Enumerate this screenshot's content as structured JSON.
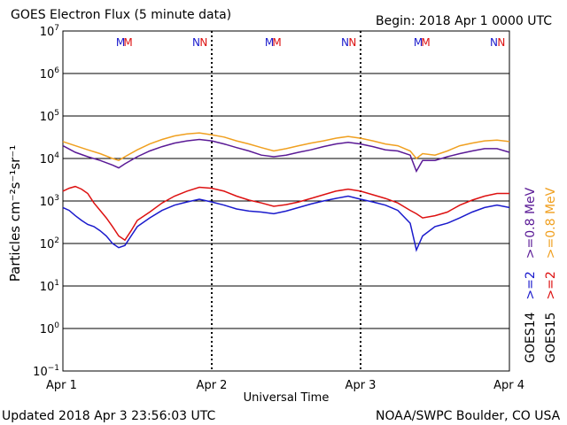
{
  "header": {
    "title": "GOES Electron Flux (5 minute data)",
    "begin": "Begin: 2018 Apr 1 0000 UTC"
  },
  "footer": {
    "updated": "Updated 2018 Apr  3 23:56:03 UTC",
    "credit": "NOAA/SWPC Boulder, CO USA"
  },
  "chart_data": {
    "type": "line",
    "xlabel": "Universal Time",
    "ylabel": "Particles cm⁻²s⁻¹sr⁻¹",
    "x_ticks": [
      "Apr 1",
      "Apr 2",
      "Apr 3",
      "Apr 4"
    ],
    "xlim_hours": [
      0,
      72
    ],
    "y_scale": "log",
    "ylim": [
      0.1,
      10000000
    ],
    "y_ticks": [
      {
        "base": "10",
        "exp": "7"
      },
      {
        "base": "10",
        "exp": "6"
      },
      {
        "base": "10",
        "exp": "5"
      },
      {
        "base": "10",
        "exp": "4"
      },
      {
        "base": "10",
        "exp": "3"
      },
      {
        "base": "10",
        "exp": "2"
      },
      {
        "base": "10",
        "exp": "1"
      },
      {
        "base": "10",
        "exp": "0"
      },
      {
        "base": "10",
        "exp": "−1"
      }
    ],
    "threshold": 1000,
    "markers": [
      {
        "hour": 9.3,
        "label": "M",
        "color": "#1a1acc"
      },
      {
        "hour": 10.5,
        "label": "M",
        "color": "#dd1111"
      },
      {
        "hour": 21.5,
        "label": "N",
        "color": "#1a1acc"
      },
      {
        "hour": 22.7,
        "label": "N",
        "color": "#dd1111"
      },
      {
        "hour": 33.3,
        "label": "M",
        "color": "#1a1acc"
      },
      {
        "hour": 34.5,
        "label": "M",
        "color": "#dd1111"
      },
      {
        "hour": 45.5,
        "label": "N",
        "color": "#1a1acc"
      },
      {
        "hour": 46.7,
        "label": "N",
        "color": "#dd1111"
      },
      {
        "hour": 57.3,
        "label": "M",
        "color": "#1a1acc"
      },
      {
        "hour": 58.5,
        "label": "M",
        "color": "#dd1111"
      },
      {
        "hour": 69.5,
        "label": "N",
        "color": "#1a1acc"
      },
      {
        "hour": 70.7,
        "label": "N",
        "color": "#dd1111"
      }
    ],
    "legend": {
      "placement": "right",
      "groups": [
        {
          "sat": "GOES14",
          "entries": [
            {
              "label": ">=2",
              "color": "#1a1acc"
            },
            {
              "label": ">=0.8 MeV",
              "color": "#5a1a96"
            }
          ]
        },
        {
          "sat": "GOES15",
          "entries": [
            {
              "label": ">=2",
              "color": "#dd1111"
            },
            {
              "label": ">=0.8 MeV",
              "color": "#f0a020"
            }
          ]
        }
      ]
    },
    "series": [
      {
        "name": "GOES15 >=0.8 MeV",
        "color": "#f0a020",
        "points": [
          [
            0,
            25000
          ],
          [
            2,
            20000
          ],
          [
            4,
            16000
          ],
          [
            6,
            13000
          ],
          [
            8,
            10000
          ],
          [
            9,
            9000
          ],
          [
            10,
            11000
          ],
          [
            12,
            16000
          ],
          [
            14,
            22000
          ],
          [
            16,
            28000
          ],
          [
            18,
            34000
          ],
          [
            20,
            38000
          ],
          [
            22,
            40000
          ],
          [
            24,
            36000
          ],
          [
            26,
            32000
          ],
          [
            28,
            26000
          ],
          [
            30,
            22000
          ],
          [
            32,
            18000
          ],
          [
            34,
            15000
          ],
          [
            36,
            17000
          ],
          [
            38,
            20000
          ],
          [
            40,
            23000
          ],
          [
            42,
            26000
          ],
          [
            44,
            30000
          ],
          [
            46,
            33000
          ],
          [
            48,
            30000
          ],
          [
            50,
            26000
          ],
          [
            52,
            22000
          ],
          [
            54,
            20000
          ],
          [
            56,
            15000
          ],
          [
            57,
            10000
          ],
          [
            58,
            13000
          ],
          [
            60,
            12000
          ],
          [
            62,
            15000
          ],
          [
            64,
            20000
          ],
          [
            66,
            23000
          ],
          [
            68,
            26000
          ],
          [
            70,
            27000
          ],
          [
            72,
            25000
          ]
        ]
      },
      {
        "name": "GOES14 >=0.8 MeV",
        "color": "#5a1a96",
        "points": [
          [
            0,
            20000
          ],
          [
            2,
            14000
          ],
          [
            4,
            11000
          ],
          [
            6,
            9000
          ],
          [
            8,
            7000
          ],
          [
            9,
            6000
          ],
          [
            10,
            7500
          ],
          [
            12,
            11000
          ],
          [
            14,
            15000
          ],
          [
            16,
            19000
          ],
          [
            18,
            23000
          ],
          [
            20,
            26000
          ],
          [
            22,
            28000
          ],
          [
            24,
            26000
          ],
          [
            26,
            22000
          ],
          [
            28,
            18000
          ],
          [
            30,
            15000
          ],
          [
            32,
            12000
          ],
          [
            34,
            11000
          ],
          [
            36,
            12000
          ],
          [
            38,
            14000
          ],
          [
            40,
            16000
          ],
          [
            42,
            19000
          ],
          [
            44,
            22000
          ],
          [
            46,
            24000
          ],
          [
            48,
            22000
          ],
          [
            50,
            19000
          ],
          [
            52,
            16000
          ],
          [
            54,
            15000
          ],
          [
            56,
            12000
          ],
          [
            57,
            5000
          ],
          [
            58,
            9000
          ],
          [
            60,
            9000
          ],
          [
            62,
            11000
          ],
          [
            64,
            13000
          ],
          [
            66,
            15000
          ],
          [
            68,
            17000
          ],
          [
            70,
            17000
          ],
          [
            72,
            14000
          ]
        ]
      },
      {
        "name": "GOES15 >=2",
        "color": "#dd1111",
        "points": [
          [
            0,
            1700
          ],
          [
            1,
            2000
          ],
          [
            2,
            2200
          ],
          [
            3,
            1900
          ],
          [
            4,
            1500
          ],
          [
            5,
            900
          ],
          [
            6,
            600
          ],
          [
            7,
            400
          ],
          [
            8,
            250
          ],
          [
            9,
            150
          ],
          [
            10,
            120
          ],
          [
            11,
            200
          ],
          [
            12,
            350
          ],
          [
            14,
            550
          ],
          [
            16,
            900
          ],
          [
            18,
            1300
          ],
          [
            20,
            1700
          ],
          [
            22,
            2100
          ],
          [
            24,
            2000
          ],
          [
            26,
            1700
          ],
          [
            28,
            1300
          ],
          [
            30,
            1050
          ],
          [
            32,
            900
          ],
          [
            34,
            750
          ],
          [
            36,
            820
          ],
          [
            38,
            950
          ],
          [
            40,
            1150
          ],
          [
            42,
            1400
          ],
          [
            44,
            1700
          ],
          [
            46,
            1900
          ],
          [
            48,
            1700
          ],
          [
            50,
            1400
          ],
          [
            52,
            1150
          ],
          [
            54,
            900
          ],
          [
            56,
            600
          ],
          [
            57,
            500
          ],
          [
            58,
            400
          ],
          [
            60,
            450
          ],
          [
            62,
            550
          ],
          [
            64,
            800
          ],
          [
            66,
            1050
          ],
          [
            68,
            1300
          ],
          [
            70,
            1500
          ],
          [
            72,
            1500
          ]
        ]
      },
      {
        "name": "GOES14 >=2",
        "color": "#1a1acc",
        "points": [
          [
            0,
            700
          ],
          [
            1,
            600
          ],
          [
            2,
            450
          ],
          [
            3,
            350
          ],
          [
            4,
            280
          ],
          [
            5,
            250
          ],
          [
            6,
            200
          ],
          [
            7,
            150
          ],
          [
            8,
            100
          ],
          [
            9,
            80
          ],
          [
            10,
            90
          ],
          [
            11,
            150
          ],
          [
            12,
            250
          ],
          [
            14,
            400
          ],
          [
            16,
            600
          ],
          [
            18,
            800
          ],
          [
            20,
            950
          ],
          [
            22,
            1100
          ],
          [
            24,
            950
          ],
          [
            26,
            800
          ],
          [
            28,
            650
          ],
          [
            30,
            580
          ],
          [
            32,
            550
          ],
          [
            34,
            500
          ],
          [
            36,
            580
          ],
          [
            38,
            700
          ],
          [
            40,
            850
          ],
          [
            42,
            1000
          ],
          [
            44,
            1150
          ],
          [
            46,
            1300
          ],
          [
            48,
            1100
          ],
          [
            50,
            950
          ],
          [
            52,
            800
          ],
          [
            54,
            600
          ],
          [
            56,
            300
          ],
          [
            57,
            70
          ],
          [
            58,
            150
          ],
          [
            60,
            250
          ],
          [
            62,
            300
          ],
          [
            64,
            400
          ],
          [
            66,
            550
          ],
          [
            68,
            700
          ],
          [
            70,
            800
          ],
          [
            72,
            700
          ]
        ]
      }
    ]
  }
}
